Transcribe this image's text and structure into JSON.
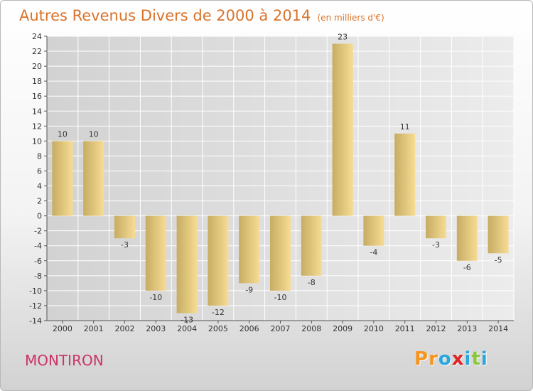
{
  "header": {
    "title": "Autres Revenus Divers de 2000 à 2014",
    "unit": "(en milliers d'€)"
  },
  "footer": {
    "commune": "MONTIRON",
    "brand": "Proxiti",
    "brand_letters": [
      "P",
      "r",
      "o",
      "x",
      "i",
      "t",
      "i"
    ],
    "brand_colors": [
      "#f7941d",
      "#f7941d",
      "#2aa6de",
      "#e02323",
      "#2aa6de",
      "#8cc63f",
      "#2aa6de"
    ]
  },
  "colors": {
    "title": "#d9732a",
    "commune": "#cc3366",
    "bar_light": "#f6dc94",
    "bar_dark": "#c7ad63",
    "grid": "#ffffff",
    "plot_bg": "#dedede"
  },
  "chart_data": {
    "type": "bar",
    "title": "Autres Revenus Divers de 2000 à 2014",
    "subtitle": "(en milliers d'€)",
    "xlabel": "",
    "ylabel": "",
    "categories": [
      "2000",
      "2001",
      "2002",
      "2003",
      "2004",
      "2005",
      "2006",
      "2007",
      "2008",
      "2009",
      "2010",
      "2011",
      "2012",
      "2013",
      "2014"
    ],
    "values": [
      10,
      10,
      -3,
      -10,
      -13,
      -12,
      -9,
      -10,
      -8,
      23,
      -4,
      11,
      -3,
      -6,
      -5
    ],
    "ylim": [
      -14,
      24
    ],
    "yticks": [
      -14,
      -12,
      -10,
      -8,
      -6,
      -4,
      -2,
      0,
      2,
      4,
      6,
      8,
      10,
      12,
      14,
      16,
      18,
      20,
      22,
      24
    ],
    "grid": true,
    "legend": "none"
  }
}
